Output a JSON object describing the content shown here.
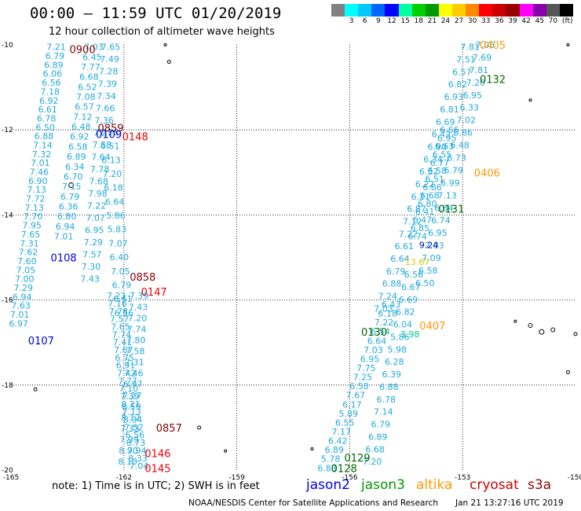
{
  "title": "00:00 – 11:59 UTC 01/20/2019",
  "subtitle": "12 hour collection of altimeter wave heights",
  "colorbar": {
    "colors": [
      "#808080",
      "#00ffff",
      "#00c8ff",
      "#0066ff",
      "#0000ff",
      "#00ffa0",
      "#00d000",
      "#009900",
      "#ffff00",
      "#ffcc00",
      "#ff8800",
      "#ff0000",
      "#cc0000",
      "#990000",
      "#ff00ff",
      "#8800aa",
      "#555555",
      "#000000"
    ],
    "labels": [
      "3",
      "6",
      "9",
      "12",
      "15",
      "18",
      "21",
      "24",
      "27",
      "30",
      "33",
      "36",
      "39",
      "42",
      "45",
      "70"
    ],
    "unit": "(ft)"
  },
  "map": {
    "lat_ticks": [
      "-10",
      "-12",
      "-14",
      "-16",
      "-18",
      "-20"
    ],
    "lon_ticks": [
      "-165",
      "-162",
      "-159",
      "-156",
      "-153",
      "-150"
    ]
  },
  "chart_data": {
    "type": "scatter",
    "xlim": [
      -165,
      -150
    ],
    "ylim": [
      -20,
      -10
    ],
    "xlabel": "",
    "ylabel": "",
    "grid": "dotted",
    "text_color": "#22aadd",
    "tracks": [
      {
        "x1": -163.8,
        "y1": -10.05,
        "x2": -164.8,
        "y2": -16.55,
        "values": [
          "7.21",
          "6.79",
          "6.89",
          "6.06",
          "6.56",
          "7.18",
          "6.92",
          "6.61",
          "6.78",
          "6.50",
          "6.88",
          "7.14",
          "7.32",
          "7.01",
          "7.46",
          "6.90",
          "7.13",
          "7.72",
          "7.13",
          "7.70",
          "7.95",
          "7.65",
          "7.31",
          "7.62",
          "7.60",
          "7.05",
          "7.00",
          "7.29",
          "6.94",
          "7.63",
          "7.01",
          "6.97"
        ]
      },
      {
        "x1": -162.8,
        "y1": -10.05,
        "x2": -163.6,
        "y2": -14.5,
        "values": [
          "7.03",
          "6.45",
          "7.77",
          "6.68",
          "6.52",
          "7.08",
          "6.57",
          "7.12",
          "6.48",
          "6.92",
          "6.58",
          "6.89",
          "6.34",
          "6.70",
          "7.15",
          "6.79",
          "6.36",
          "6.80",
          "6.94",
          "7.01"
        ]
      },
      {
        "x1": -162.35,
        "y1": -10.05,
        "x2": -162.9,
        "y2": -15.5,
        "values": [
          "7.65",
          "7.49",
          "7.28",
          "7.39",
          "7.34",
          "7.66",
          "7.36",
          "7.27",
          "7.58",
          "7.64",
          "7.78",
          "7.68",
          "7.98",
          "7.22",
          "7.07",
          "6.95",
          "7.29",
          "7.57",
          "7.30",
          "7.43"
        ]
      },
      {
        "x1": -162.4,
        "y1": -12.05,
        "x2": -162.0,
        "y2": -16.3,
        "values": [
          "7.36",
          "6.51",
          "6.13",
          "7.20",
          "6.18",
          "6.64",
          "5.86",
          "5.83",
          "7.07",
          "6.40",
          "7.05",
          "6.79",
          "6.41",
          "6.56"
        ]
      },
      {
        "x1": -162.2,
        "y1": -15.9,
        "x2": -161.6,
        "y2": -19.9,
        "values": [
          "7.22",
          "7.16",
          "7.78",
          "7.57",
          "7.65",
          "7.74",
          "7.41",
          "7.67",
          "6.75",
          "6.91",
          "7.42",
          "7.77",
          "7.10",
          "7.39",
          "8.21",
          "7.13",
          "8.34",
          "7.52",
          "6.56",
          "8.73",
          "7.94",
          "8.33",
          "7.04"
        ]
      },
      {
        "x1": -161.6,
        "y1": -15.9,
        "x2": -161.9,
        "y2": -19.8,
        "values": [
          "7.39",
          "7.43",
          "7.20",
          "7.74",
          "7.80",
          "7.58",
          "7.31",
          "7.46",
          "6.97",
          "7.27",
          "8.59",
          "8.12",
          "7.33",
          "7.99",
          "8.90",
          "8.10"
        ]
      },
      {
        "x1": -152.4,
        "y1": -10.0,
        "x2": -154.0,
        "y2": -15.6,
        "values": [
          "7.05",
          "7.69",
          "7.81",
          "7.20",
          "6.95",
          "6.33",
          "7.02",
          "6.86",
          "6.48",
          "6.73",
          "6.79",
          "6.99",
          "7.13",
          "6.84",
          "6.74",
          "6.95",
          "7.03",
          "7.09",
          "6.58",
          "6.50"
        ]
      },
      {
        "x1": -152.8,
        "y1": -10.05,
        "x2": -155.1,
        "y2": -16.2,
        "values": [
          "7.81",
          "7.51",
          "6.57",
          "6.82",
          "6.93",
          "6.81",
          "6.69",
          "6.43",
          "6.90",
          "6.34",
          "6.32",
          "6.22",
          "6.21",
          "6.87",
          "7.12",
          "7.22",
          "6.61",
          "6.64",
          "6.79",
          "6.88",
          "7.24",
          "7.03"
        ]
      },
      {
        "x1": -153.35,
        "y1": -12.0,
        "x2": -154.2,
        "y2": -14.5,
        "values": [
          "6.66",
          "6.95",
          "6.63",
          "6.55",
          "6.77",
          "6.58",
          "6.51",
          "6.86",
          "6.68",
          "6.80",
          "6.41",
          "6.47",
          "6.85",
          "6.74"
        ]
      },
      {
        "x1": -154.9,
        "y1": -16.1,
        "x2": -156.6,
        "y2": -19.95,
        "values": [
          "6.43",
          "6.18",
          "7.22",
          "6.54",
          "6.64",
          "7.03",
          "6.95",
          "7.75",
          "7.25",
          "6.58",
          "7.67",
          "6.17",
          "5.89",
          "6.55",
          "7.17",
          "6.42",
          "6.89",
          "5.78",
          "6.83"
        ]
      },
      {
        "x1": -154.3,
        "y1": -15.4,
        "x2": -155.4,
        "y2": -19.8,
        "values": [
          "6.56",
          "6.67",
          "6.69",
          "6.82",
          "6.04",
          "5.86",
          "5.98",
          "6.28",
          "6.39",
          "6.88",
          "6.78",
          "7.14",
          "6.79",
          "6.89",
          "6.68",
          "7.20"
        ]
      }
    ],
    "special_values": [
      {
        "x": -153.9,
        "y": -14.7,
        "text": "9.24",
        "color": "#0000aa"
      },
      {
        "x": -154.2,
        "y": -15.1,
        "text": "13.67",
        "color": "#ddcc00"
      },
      {
        "x": -154.4,
        "y": -16.8,
        "text": "3.98",
        "color": "#00cc88"
      }
    ],
    "time_labels": [
      {
        "x": -163.1,
        "y": -10.1,
        "text": "0900",
        "color": "#800000"
      },
      {
        "x": -162.35,
        "y": -11.95,
        "text": "0859",
        "color": "#800000"
      },
      {
        "x": -162.4,
        "y": -12.1,
        "text": "0109",
        "color": "#0000cc"
      },
      {
        "x": -161.7,
        "y": -12.15,
        "text": "0148",
        "color": "#ee0000"
      },
      {
        "x": -163.6,
        "y": -15.0,
        "text": "0108",
        "color": "#0000cc"
      },
      {
        "x": -161.5,
        "y": -15.45,
        "text": "0858",
        "color": "#800000"
      },
      {
        "x": -161.2,
        "y": -15.8,
        "text": "0147",
        "color": "#ee0000"
      },
      {
        "x": -164.2,
        "y": -16.95,
        "text": "0107",
        "color": "#0000cc"
      },
      {
        "x": -160.8,
        "y": -19.0,
        "text": "0857",
        "color": "#800000"
      },
      {
        "x": -161.1,
        "y": -19.6,
        "text": "0146",
        "color": "#ee0000"
      },
      {
        "x": -161.1,
        "y": -19.95,
        "text": "0145",
        "color": "#ee0000"
      },
      {
        "x": -152.2,
        "y": -10.0,
        "text": "0405",
        "color": "#ff9900"
      },
      {
        "x": -152.2,
        "y": -10.8,
        "text": "0132",
        "color": "#006600"
      },
      {
        "x": -152.35,
        "y": -13.0,
        "text": "0406",
        "color": "#ff9900"
      },
      {
        "x": -153.3,
        "y": -13.85,
        "text": "0131",
        "color": "#006600"
      },
      {
        "x": -153.8,
        "y": -16.6,
        "text": "0407",
        "color": "#ff9900"
      },
      {
        "x": -155.35,
        "y": -16.75,
        "text": "0130",
        "color": "#006600"
      },
      {
        "x": -155.8,
        "y": -19.7,
        "text": "0129",
        "color": "#006600"
      },
      {
        "x": -156.15,
        "y": -19.95,
        "text": "0128",
        "color": "#006600"
      }
    ],
    "islands": [
      {
        "x": -163.4,
        "y": -13.3,
        "r": 3
      },
      {
        "x": -164.35,
        "y": -18.1,
        "r": 2
      },
      {
        "x": -160.8,
        "y": -10.4,
        "r": 2
      },
      {
        "x": -160.9,
        "y": -10.0,
        "r": 1.5
      },
      {
        "x": -160.0,
        "y": -19.0,
        "r": 2
      },
      {
        "x": -159.3,
        "y": -19.55,
        "r": 1.5
      },
      {
        "x": -157.0,
        "y": -19.5,
        "r": 1.5
      },
      {
        "x": -151.2,
        "y": -11.3,
        "r": 1.5
      },
      {
        "x": -150.2,
        "y": -10.0,
        "r": 1.5
      },
      {
        "x": -151.6,
        "y": -16.5,
        "r": 1.5
      },
      {
        "x": -151.2,
        "y": -16.6,
        "r": 2.5
      },
      {
        "x": -150.9,
        "y": -16.75,
        "r": 3
      },
      {
        "x": -150.6,
        "y": -16.7,
        "r": 2.5
      },
      {
        "x": -150.0,
        "y": -16.8,
        "r": 2
      },
      {
        "x": -150.2,
        "y": -17.7,
        "r": 2
      }
    ]
  },
  "footer": {
    "note": "note:  1) Time is in UTC;  2) SWH is in feet",
    "satellites": [
      {
        "name": "jason2",
        "color": "#0000ee"
      },
      {
        "name": "jason3",
        "color": "#009900"
      },
      {
        "name": "altika",
        "color": "#ff9900"
      },
      {
        "name": "cryosat",
        "color": "#cc0000"
      },
      {
        "name": "s3a",
        "color": "#990000"
      }
    ],
    "credit": "NOAA/NESDIS Center for Satellite Applications and Research",
    "timestamp": "Jan 21 13:27:16 UTC 2019"
  }
}
